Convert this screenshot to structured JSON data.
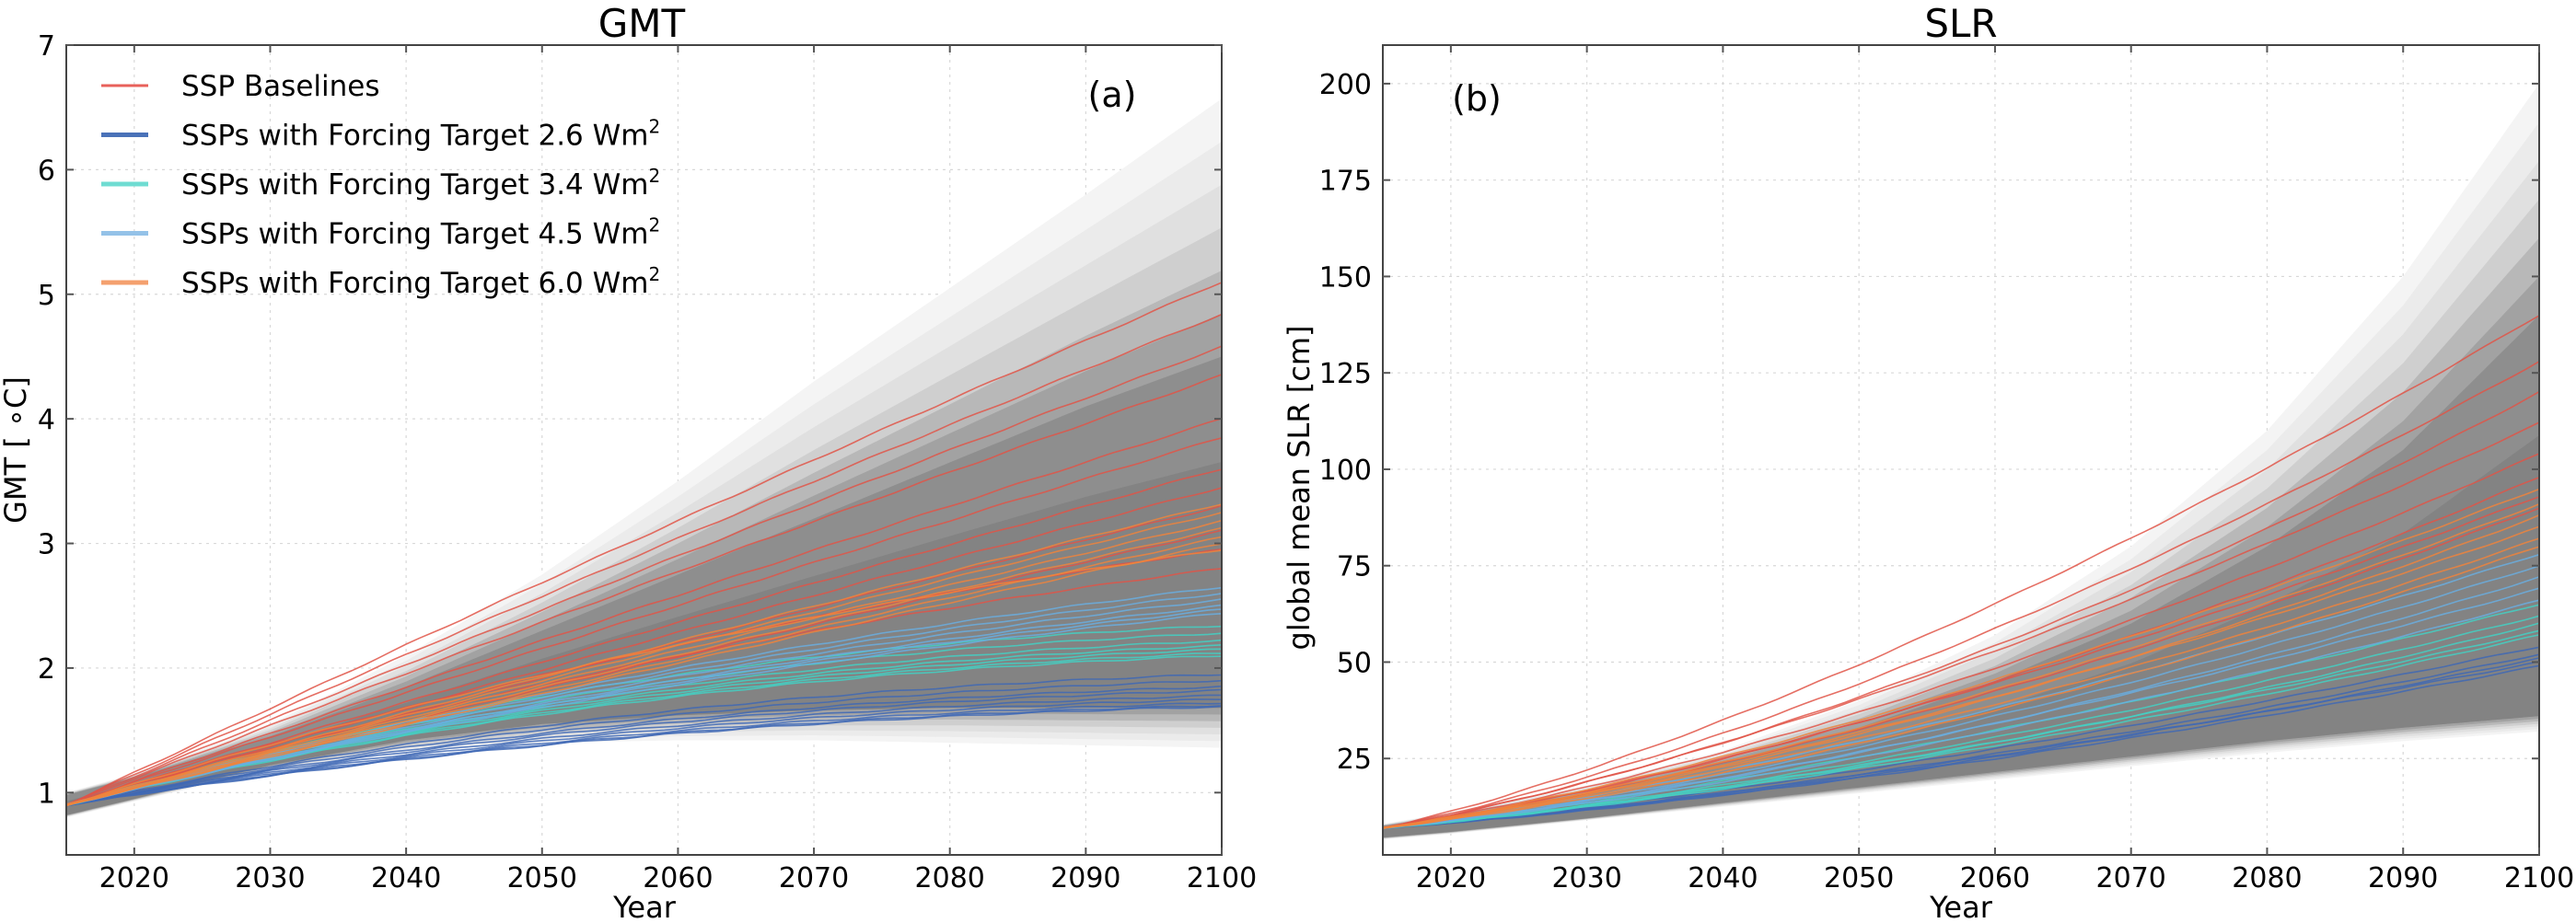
{
  "chart_data": [
    {
      "type": "line",
      "id": "gmt",
      "title": "GMT",
      "panel_label": "(a)",
      "xlabel": "Year",
      "ylabel": "GMT [$^\\circ$C]",
      "ylabel_display": "GMT [ ∘C]",
      "xlim": [
        2015,
        2100
      ],
      "ylim": [
        0.5,
        7
      ],
      "xticks": [
        2020,
        2030,
        2040,
        2050,
        2060,
        2070,
        2080,
        2090,
        2100
      ],
      "yticks": [
        1,
        2,
        3,
        4,
        5,
        6,
        7
      ],
      "grid": true,
      "legend_position": "top-left",
      "x": [
        2015,
        2020,
        2030,
        2040,
        2050,
        2060,
        2070,
        2080,
        2090,
        2100
      ],
      "envelope": {
        "outer_upper": [
          1.0,
          1.15,
          1.55,
          2.1,
          2.75,
          3.5,
          4.3,
          5.05,
          5.8,
          6.57
        ],
        "outer_lower": [
          0.8,
          0.93,
          1.18,
          1.33,
          1.4,
          1.42,
          1.42,
          1.4,
          1.38,
          1.36
        ],
        "core_upper": [
          0.98,
          1.12,
          1.45,
          1.85,
          2.3,
          2.75,
          3.2,
          3.65,
          4.1,
          4.5
        ],
        "core_lower": [
          0.82,
          0.95,
          1.22,
          1.42,
          1.55,
          1.62,
          1.66,
          1.68,
          1.68,
          1.68
        ]
      },
      "series": [
        {
          "name": "SSP Baselines",
          "color": "#e05548",
          "start": 0.9,
          "end_values_2100": [
            5.1,
            4.84,
            4.58,
            4.35,
            4.0,
            3.85,
            3.6,
            3.45,
            3.3,
            3.1,
            2.95,
            2.8
          ]
        },
        {
          "name": "SSPs with Forcing Target 2.6 Wm²",
          "color": "#3f68b5",
          "start": 0.9,
          "end_values_2100": [
            1.95,
            1.9,
            1.85,
            1.82,
            1.78,
            1.75,
            1.72,
            1.7,
            1.69
          ]
        },
        {
          "name": "SSPs with Forcing Target 3.4 Wm²",
          "color": "#43d1c4",
          "start": 0.9,
          "end_values_2100": [
            2.34,
            2.28,
            2.22,
            2.18,
            2.15,
            2.12,
            2.1
          ]
        },
        {
          "name": "SSPs with Forcing Target 4.5 Wm²",
          "color": "#6aaee0",
          "start": 0.9,
          "end_values_2100": [
            2.65,
            2.6,
            2.55,
            2.5,
            2.47,
            2.44
          ]
        },
        {
          "name": "SSPs with Forcing Target 6.0 Wm²",
          "color": "#f0843c",
          "start": 0.9,
          "end_values_2100": [
            3.32,
            3.25,
            3.18,
            3.12,
            3.05,
            3.0,
            2.95
          ]
        }
      ]
    },
    {
      "type": "line",
      "id": "slr",
      "title": "SLR",
      "panel_label": "(b)",
      "xlabel": "Year",
      "ylabel": "global mean SLR [cm]",
      "xlim": [
        2015,
        2100
      ],
      "ylim": [
        0,
        210
      ],
      "xticks": [
        2020,
        2030,
        2040,
        2050,
        2060,
        2070,
        2080,
        2090,
        2100
      ],
      "yticks": [
        25,
        50,
        75,
        100,
        125,
        150,
        175,
        200
      ],
      "grid": true,
      "x": [
        2015,
        2020,
        2030,
        2040,
        2050,
        2060,
        2070,
        2080,
        2090,
        2100
      ],
      "envelope": {
        "outer_upper": [
          8,
          11,
          18,
          27,
          40,
          57,
          80,
          110,
          150,
          200
        ],
        "outer_lower": [
          4,
          5.5,
          9,
          12.5,
          16,
          19.5,
          23,
          26.5,
          29.5,
          32
        ],
        "core_upper": [
          7.5,
          10,
          16,
          24,
          33,
          45,
          60,
          80,
          105,
          140
        ],
        "core_lower": [
          4.5,
          6,
          9.5,
          13.5,
          17.5,
          21.5,
          25.5,
          29.5,
          33,
          36
        ]
      },
      "series": [
        {
          "name": "SSP Baselines",
          "color": "#e05548",
          "start": 7,
          "end_values_2100": [
            140,
            128,
            120,
            112,
            104,
            98,
            93,
            90
          ]
        },
        {
          "name": "SSPs with Forcing Target 2.6 Wm²",
          "color": "#3f68b5",
          "start": 7,
          "end_values_2100": [
            54,
            52,
            51,
            50,
            49
          ]
        },
        {
          "name": "SSPs with Forcing Target 3.4 Wm²",
          "color": "#43d1c4",
          "start": 7,
          "end_values_2100": [
            65,
            62,
            60,
            58,
            57
          ]
        },
        {
          "name": "SSPs with Forcing Target 4.5 Wm²",
          "color": "#6aaee0",
          "start": 7,
          "end_values_2100": [
            78,
            75,
            72,
            69,
            66
          ]
        },
        {
          "name": "SSPs with Forcing Target 6.0 Wm²",
          "color": "#f0843c",
          "start": 7,
          "end_values_2100": [
            95,
            91,
            88,
            85,
            82,
            80
          ]
        }
      ]
    }
  ],
  "legend": {
    "items": [
      {
        "label": "SSP Baselines",
        "color": "#e8605a"
      },
      {
        "label": "SSPs with Forcing Target 2.6 Wm",
        "sup": "2",
        "color": "#4a72b8"
      },
      {
        "label": "SSPs with Forcing Target 3.4 Wm",
        "sup": "2",
        "color": "#6fdcd2"
      },
      {
        "label": "SSPs with Forcing Target 4.5 Wm",
        "sup": "2",
        "color": "#94c2e8"
      },
      {
        "label": "SSPs with Forcing Target 6.0 Wm",
        "sup": "2",
        "color": "#f4a06e"
      }
    ]
  }
}
